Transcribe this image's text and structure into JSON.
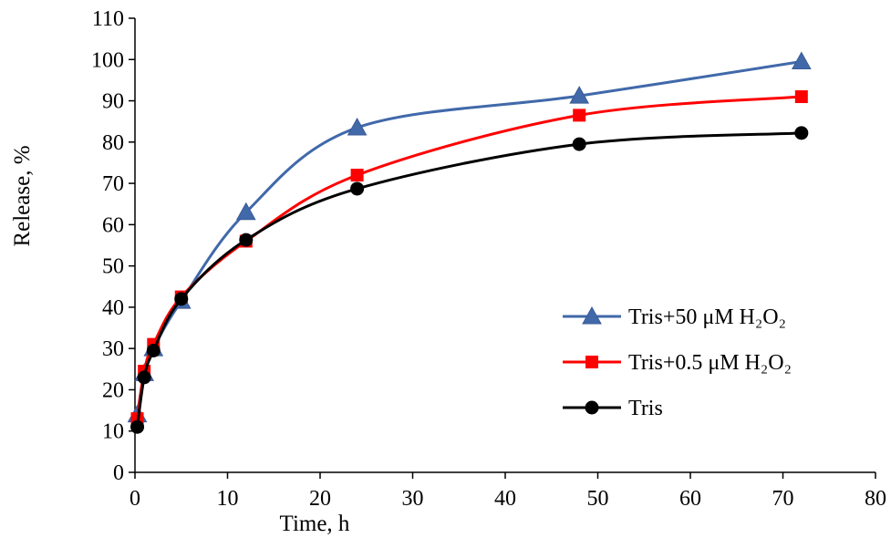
{
  "chart_data": {
    "type": "line",
    "title": "",
    "xlabel": "Time, h",
    "ylabel": "Release, %",
    "xlim": [
      0,
      80
    ],
    "ylim": [
      0,
      110
    ],
    "xticks": [
      0,
      10,
      20,
      30,
      40,
      50,
      60,
      70,
      80
    ],
    "yticks": [
      0,
      10,
      20,
      30,
      40,
      50,
      60,
      70,
      80,
      90,
      100,
      110
    ],
    "x": [
      0.25,
      1,
      2,
      5,
      12,
      24,
      48,
      72
    ],
    "grid": false,
    "legend_position": "right",
    "series": [
      {
        "name": "Tris+50 μM H₂O₂",
        "marker": "triangle",
        "color": "#4169aa",
        "values": [
          14,
          24,
          30,
          41.5,
          63,
          83.5,
          91.2,
          99.5
        ]
      },
      {
        "name": "Tris+0.5 μM H₂O₂",
        "marker": "square",
        "color": "#ff0000",
        "values": [
          13,
          24.5,
          31,
          42.5,
          56,
          72,
          86.5,
          91
        ]
      },
      {
        "name": "Tris",
        "marker": "circle",
        "color": "#000000",
        "values": [
          11,
          23,
          29.5,
          42,
          56.3,
          68.7,
          79.5,
          82.2
        ]
      }
    ]
  }
}
